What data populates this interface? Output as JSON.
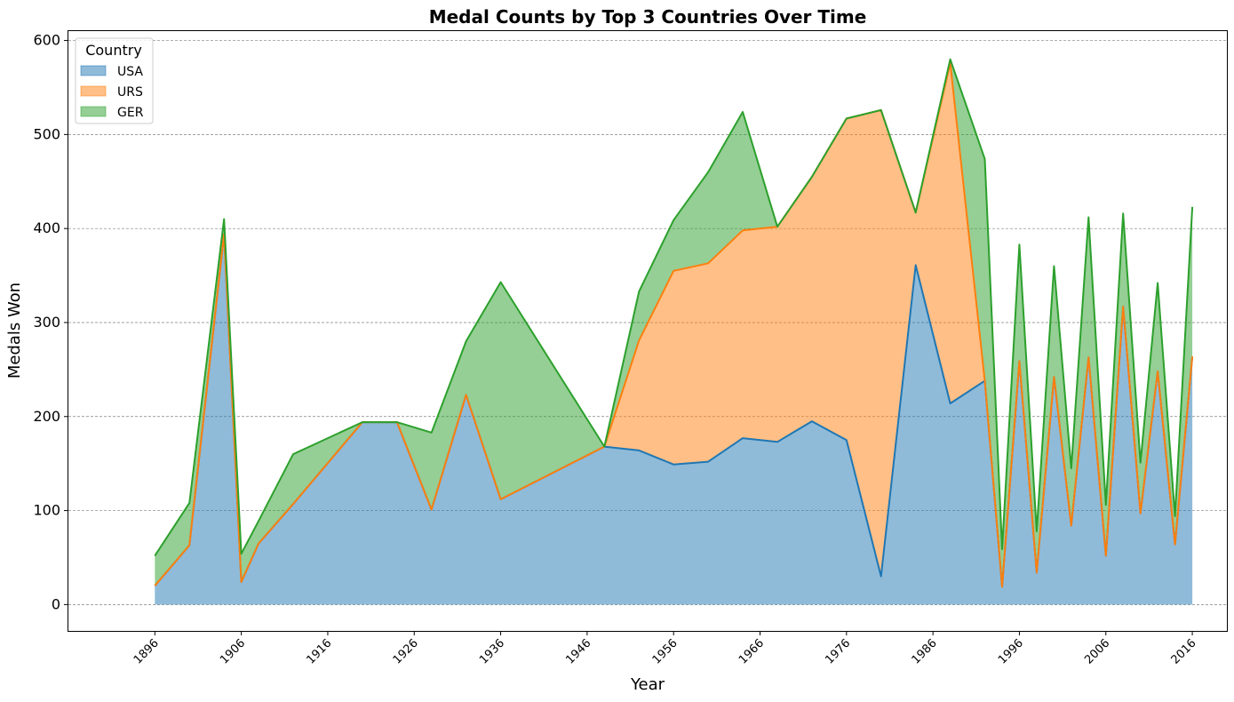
{
  "chart_data": {
    "type": "area",
    "stacked": true,
    "title": "Medal Counts by Top 3 Countries Over Time",
    "xlabel": "Year",
    "ylabel": "Medals Won",
    "xlim": [
      1886,
      2020
    ],
    "ylim": [
      -28,
      610
    ],
    "xticks": [
      "1896",
      "1906",
      "1916",
      "1926",
      "1936",
      "1946",
      "1956",
      "1966",
      "1976",
      "1986",
      "1996",
      "2006",
      "2016"
    ],
    "yticks": [
      "0",
      "100",
      "200",
      "300",
      "400",
      "500",
      "600"
    ],
    "grid": "horizontal-dashed",
    "legend": {
      "title": "Country",
      "placement": "top-left"
    },
    "x": [
      1896,
      1900,
      1904,
      1906,
      1908,
      1912,
      1920,
      1924,
      1928,
      1932,
      1936,
      1948,
      1952,
      1956,
      1960,
      1964,
      1968,
      1972,
      1976,
      1980,
      1984,
      1988,
      1992,
      1994,
      1996,
      1998,
      2000,
      2002,
      2004,
      2006,
      2008,
      2010,
      2012,
      2014,
      2016
    ],
    "series": [
      {
        "name": "USA",
        "color": "#1f77b4",
        "values": [
          20,
          63,
          394,
          24,
          65,
          107,
          194,
          194,
          101,
          223,
          112,
          168,
          164,
          149,
          152,
          177,
          173,
          195,
          175,
          30,
          361,
          214,
          238,
          19,
          259,
          34,
          242,
          84,
          263,
          52,
          317,
          97,
          248,
          64,
          264
        ]
      },
      {
        "name": "URS",
        "color": "#ff7f0e",
        "values": [
          0,
          0,
          0,
          0,
          0,
          0,
          0,
          0,
          0,
          0,
          0,
          0,
          117,
          206,
          211,
          221,
          229,
          260,
          342,
          496,
          56,
          362,
          0,
          0,
          0,
          0,
          0,
          0,
          0,
          0,
          0,
          0,
          0,
          0,
          0
        ]
      },
      {
        "name": "GER",
        "color": "#2ca02c",
        "values": [
          32,
          45,
          16,
          30,
          24,
          53,
          0,
          0,
          82,
          57,
          231,
          0,
          52,
          54,
          97,
          126,
          0,
          0,
          0,
          0,
          0,
          4,
          236,
          40,
          124,
          44,
          118,
          61,
          149,
          54,
          99,
          54,
          94,
          30,
          159
        ]
      }
    ]
  }
}
